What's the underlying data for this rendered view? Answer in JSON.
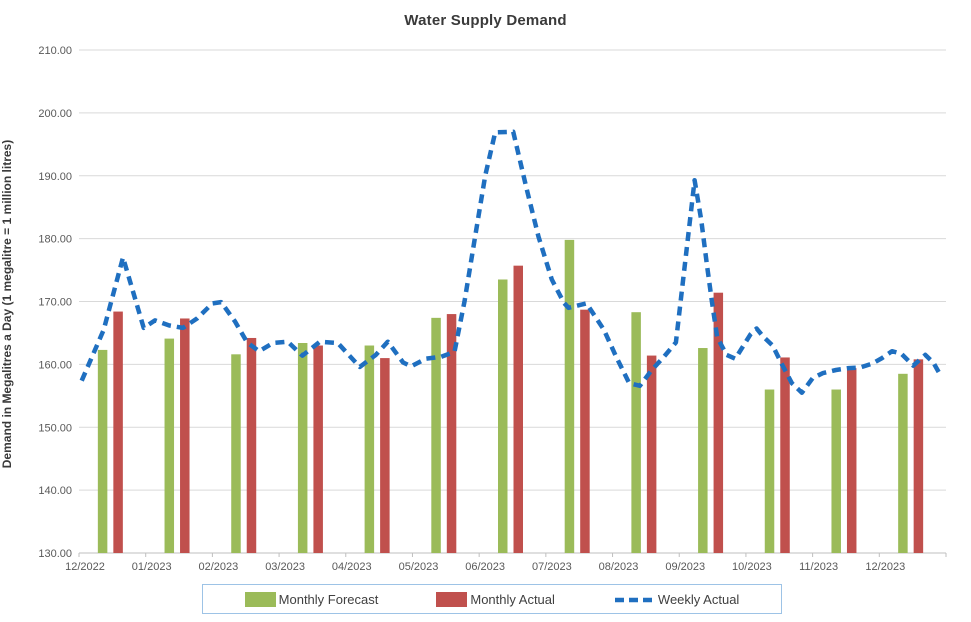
{
  "title": "Water Supply Demand",
  "y_axis": {
    "title": "Demand in Megalitres a Day (1 megalitre = 1 million litres)",
    "min": 130,
    "max": 210,
    "step": 10,
    "decimals": 2
  },
  "legend": {
    "items": [
      {
        "label": "Monthly Forecast",
        "color": "#9bbb59",
        "type": "bar"
      },
      {
        "label": "Monthly Actual",
        "color": "#c0504d",
        "type": "bar"
      },
      {
        "label": "Weekly Actual",
        "color": "#1f6fc0",
        "type": "dashed-line"
      }
    ]
  },
  "colors": {
    "gridline": "#d9d9d9",
    "axis_line": "#bfbfbf",
    "tick_label": "#595959",
    "forecast_green": "#9bbb59",
    "actual_red": "#c0504d",
    "weekly_blue": "#1f6fc0",
    "legend_border": "#9dc3e6"
  },
  "chart_data": {
    "type": "combo",
    "categories": [
      "12/2022",
      "01/2023",
      "02/2023",
      "03/2023",
      "04/2023",
      "05/2023",
      "06/2023",
      "07/2023",
      "08/2023",
      "09/2023",
      "10/2023",
      "11/2023",
      "12/2023"
    ],
    "ylim": [
      130,
      210
    ],
    "grid": true,
    "legend_position": "bottom",
    "series": [
      {
        "name": "Monthly Forecast",
        "type": "bar",
        "color": "#9bbb59",
        "values": [
          162.3,
          164.1,
          161.6,
          163.4,
          163.0,
          167.4,
          173.5,
          179.8,
          168.3,
          162.6,
          156.0,
          156.0,
          158.5
        ]
      },
      {
        "name": "Monthly Actual",
        "type": "bar",
        "color": "#c0504d",
        "values": [
          168.4,
          167.3,
          164.2,
          163.0,
          161.0,
          168.0,
          175.7,
          168.7,
          161.4,
          171.4,
          161.1,
          159.4,
          160.8
        ]
      },
      {
        "name": "Weekly Actual",
        "type": "line",
        "style": "dashed",
        "color": "#1f6fc0",
        "x_unit": "months_from_12_2022_tick",
        "points": [
          [
            0.04,
            157.4
          ],
          [
            0.37,
            165.5
          ],
          [
            0.66,
            177.0
          ],
          [
            0.97,
            165.8
          ],
          [
            1.14,
            167.0
          ],
          [
            1.35,
            166.2
          ],
          [
            1.56,
            165.8
          ],
          [
            1.77,
            167.3
          ],
          [
            2.0,
            169.7
          ],
          [
            2.13,
            169.9
          ],
          [
            2.34,
            166.8
          ],
          [
            2.52,
            163.5
          ],
          [
            2.7,
            162.1
          ],
          [
            2.91,
            163.4
          ],
          [
            3.13,
            163.6
          ],
          [
            3.35,
            161.4
          ],
          [
            3.61,
            163.6
          ],
          [
            3.88,
            163.4
          ],
          [
            4.21,
            159.6
          ],
          [
            4.45,
            161.5
          ],
          [
            4.63,
            163.6
          ],
          [
            4.86,
            160.3
          ],
          [
            4.98,
            159.7
          ],
          [
            5.2,
            160.9
          ],
          [
            5.43,
            161.2
          ],
          [
            5.63,
            162.0
          ],
          [
            5.78,
            170.0
          ],
          [
            5.94,
            180.4
          ],
          [
            6.09,
            190.0
          ],
          [
            6.24,
            196.9
          ],
          [
            6.51,
            197.0
          ],
          [
            6.71,
            188.0
          ],
          [
            6.89,
            180.3
          ],
          [
            7.09,
            173.5
          ],
          [
            7.27,
            169.8
          ],
          [
            7.34,
            169.0
          ],
          [
            7.61,
            169.7
          ],
          [
            7.87,
            165.5
          ],
          [
            8.05,
            161.3
          ],
          [
            8.25,
            157.0
          ],
          [
            8.41,
            156.6
          ],
          [
            8.58,
            159.0
          ],
          [
            8.77,
            161.2
          ],
          [
            8.95,
            163.5
          ],
          [
            9.23,
            189.3
          ],
          [
            9.33,
            183.0
          ],
          [
            9.42,
            175.5
          ],
          [
            9.49,
            170.0
          ],
          [
            9.57,
            164.3
          ],
          [
            9.71,
            161.5
          ],
          [
            9.84,
            160.9
          ],
          [
            10.07,
            164.8
          ],
          [
            10.16,
            165.7
          ],
          [
            10.26,
            164.4
          ],
          [
            10.4,
            163.0
          ],
          [
            10.55,
            159.8
          ],
          [
            10.69,
            157.0
          ],
          [
            10.84,
            155.5
          ],
          [
            11.0,
            157.8
          ],
          [
            11.15,
            158.6
          ],
          [
            11.35,
            159.1
          ],
          [
            11.54,
            159.4
          ],
          [
            11.71,
            159.5
          ],
          [
            11.89,
            160.1
          ],
          [
            12.04,
            161.0
          ],
          [
            12.19,
            162.1
          ],
          [
            12.33,
            161.7
          ],
          [
            12.51,
            159.8
          ],
          [
            12.69,
            161.5
          ],
          [
            12.81,
            160.3
          ],
          [
            12.91,
            158.4
          ]
        ]
      }
    ]
  }
}
